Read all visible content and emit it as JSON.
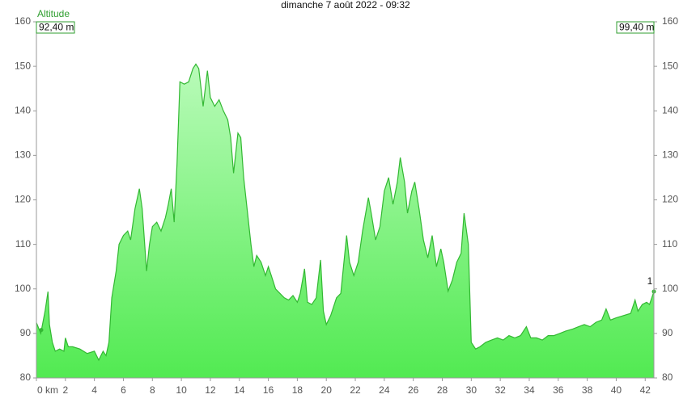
{
  "chart_data": {
    "type": "area",
    "title": "dimanche 7 août 2022 - 09:32",
    "y_label": "Altitude",
    "start_label": "92,40 m",
    "end_label": "99,40 m",
    "marker_label": "1",
    "color": "#33b833",
    "fill_top": "#b9fbb9",
    "fill_bottom": "#52ea52",
    "grid": false,
    "xlim": [
      0,
      42.6
    ],
    "xticks": [
      {
        "value": 0,
        "label": "0 km"
      },
      2,
      4,
      6,
      8,
      10,
      12,
      14,
      16,
      18,
      20,
      22,
      24,
      26,
      28,
      30,
      32,
      34,
      36,
      38,
      40,
      42
    ],
    "ylim": [
      80,
      160
    ],
    "yticks": [
      80,
      90,
      100,
      110,
      120,
      130,
      140,
      150,
      160
    ],
    "y2lim": [
      80,
      160
    ],
    "y2ticks": [
      80,
      90,
      100,
      110,
      120,
      130,
      140,
      150,
      160
    ],
    "x": [
      0,
      0.3,
      0.6,
      0.8,
      0.9,
      1.1,
      1.3,
      1.6,
      1.9,
      2.0,
      2.2,
      2.5,
      3.0,
      3.5,
      4.0,
      4.3,
      4.6,
      4.8,
      5.0,
      5.2,
      5.5,
      5.7,
      6.0,
      6.3,
      6.5,
      6.8,
      7.1,
      7.3,
      7.6,
      7.8,
      8.0,
      8.3,
      8.6,
      8.9,
      9.1,
      9.3,
      9.5,
      9.7,
      9.9,
      10.2,
      10.5,
      10.8,
      11.0,
      11.2,
      11.5,
      11.8,
      12.0,
      12.3,
      12.6,
      12.9,
      13.2,
      13.4,
      13.6,
      13.9,
      14.1,
      14.3,
      14.6,
      14.8,
      15.0,
      15.2,
      15.5,
      15.8,
      16.0,
      16.2,
      16.5,
      16.8,
      17.1,
      17.4,
      17.7,
      18.0,
      18.2,
      18.5,
      18.7,
      19.0,
      19.3,
      19.6,
      19.8,
      20.0,
      20.3,
      20.7,
      21.0,
      21.4,
      21.6,
      21.9,
      22.2,
      22.5,
      22.9,
      23.1,
      23.4,
      23.7,
      24.0,
      24.3,
      24.6,
      24.9,
      25.1,
      25.4,
      25.6,
      25.9,
      26.1,
      26.4,
      26.7,
      27.0,
      27.3,
      27.6,
      27.9,
      28.1,
      28.4,
      28.7,
      29.0,
      29.3,
      29.5,
      29.8,
      30.0,
      30.3,
      30.6,
      31.0,
      31.4,
      31.8,
      32.2,
      32.6,
      33.0,
      33.4,
      33.8,
      34.1,
      34.5,
      34.9,
      35.3,
      35.7,
      36.1,
      36.5,
      37.0,
      37.4,
      37.8,
      38.2,
      38.6,
      39.0,
      39.3,
      39.6,
      40.0,
      40.5,
      41.0,
      41.3,
      41.5,
      41.8,
      42.1,
      42.3,
      42.6
    ],
    "values": [
      92.4,
      90,
      95,
      99.4,
      92,
      88,
      86,
      86.5,
      86,
      89,
      87,
      87,
      86.5,
      85.5,
      86,
      84,
      86,
      85,
      88,
      98,
      104,
      110,
      112,
      113,
      111,
      118,
      122.5,
      118,
      104,
      110,
      114,
      115,
      113,
      116,
      119,
      122.5,
      115,
      128,
      146.5,
      146,
      146.5,
      149.5,
      150.5,
      149.5,
      141,
      149,
      143,
      141,
      142.5,
      140,
      138,
      134,
      126,
      135,
      134,
      125,
      116,
      110,
      105,
      107.5,
      106,
      103,
      105,
      103,
      100,
      99,
      98,
      97.5,
      98.5,
      97,
      99,
      104.5,
      97,
      96.5,
      98,
      106.5,
      95,
      92,
      94,
      98,
      99,
      112,
      106,
      103,
      106,
      113,
      120.5,
      117,
      111,
      114,
      122,
      125,
      119,
      124,
      129.5,
      124,
      117,
      122,
      124,
      118,
      111,
      107,
      112,
      105,
      109,
      106,
      99.5,
      102,
      106,
      108,
      117,
      110,
      88,
      86.5,
      87,
      88,
      88.5,
      89,
      88.5,
      89.5,
      89,
      89.5,
      91.5,
      89,
      89,
      88.5,
      89.5,
      89.5,
      90,
      90.5,
      91,
      91.5,
      92,
      91.5,
      92.5,
      93,
      95.5,
      93,
      93.5,
      94,
      94.5,
      97.5,
      95,
      96.5,
      97,
      96.5,
      99.4
    ]
  }
}
